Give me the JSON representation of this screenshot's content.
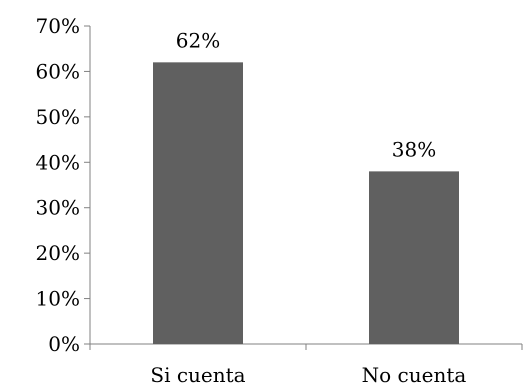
{
  "chart_data": {
    "type": "bar",
    "categories": [
      "Si cuenta",
      "No cuenta"
    ],
    "values": [
      62,
      38
    ],
    "value_labels": [
      "62%",
      "38%"
    ],
    "ylim": [
      0,
      70
    ],
    "yticks": [
      0,
      10,
      20,
      30,
      40,
      50,
      60,
      70
    ],
    "ytick_labels": [
      "0%",
      "10%",
      "20%",
      "30%",
      "40%",
      "50%",
      "60%",
      "70%"
    ],
    "grid": false,
    "legend": "none",
    "bar_color": "#606060",
    "axis_color": "#808080"
  }
}
